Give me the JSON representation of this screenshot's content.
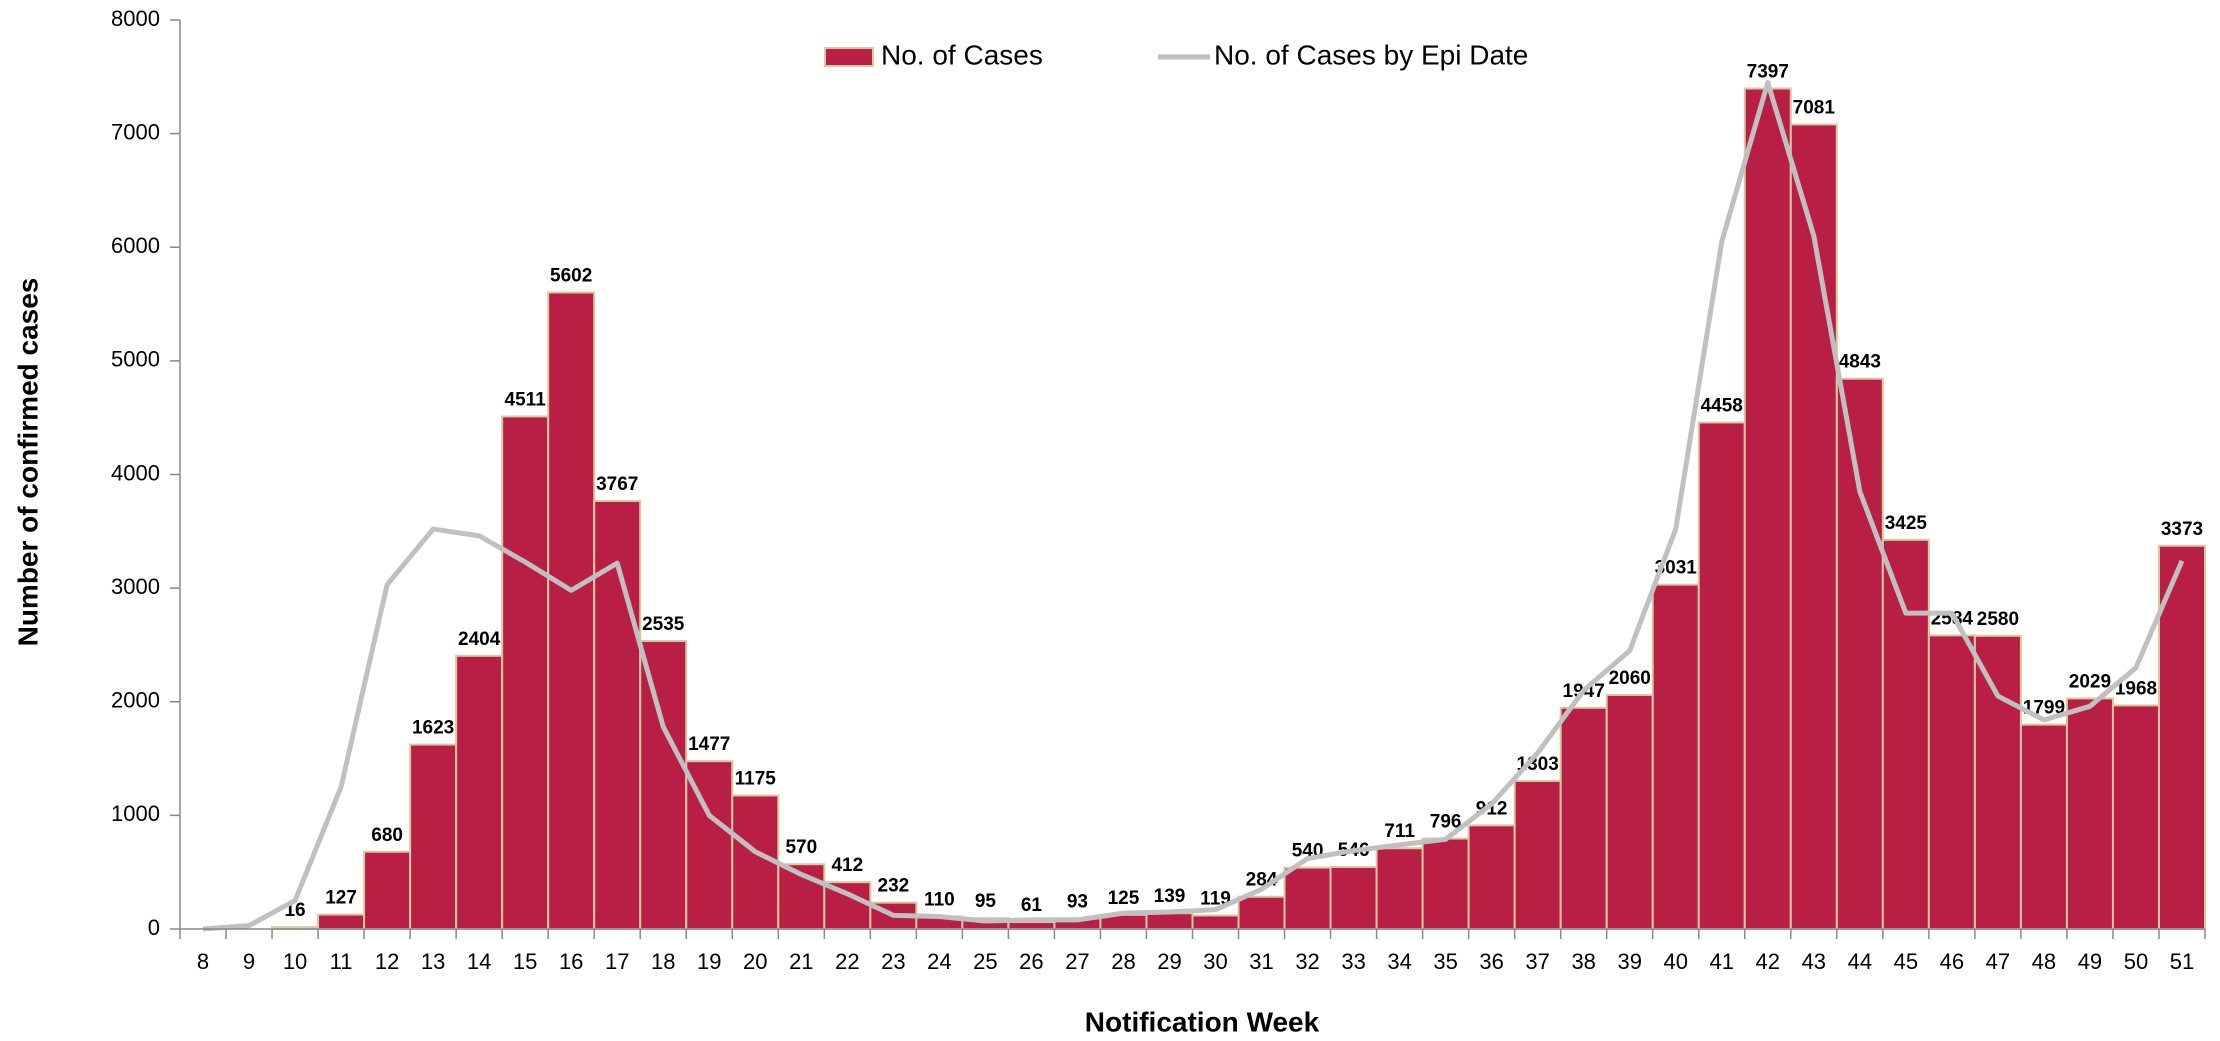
{
  "chart_data": {
    "type": "bar",
    "xlabel": "Notification Week",
    "ylabel": "Number of confirmed cases",
    "categories": [
      "8",
      "9",
      "10",
      "11",
      "12",
      "13",
      "14",
      "15",
      "16",
      "17",
      "18",
      "19",
      "20",
      "21",
      "22",
      "23",
      "24",
      "25",
      "26",
      "27",
      "28",
      "29",
      "30",
      "31",
      "32",
      "33",
      "34",
      "35",
      "36",
      "37",
      "38",
      "39",
      "40",
      "41",
      "42",
      "43",
      "44",
      "45",
      "46",
      "47",
      "48",
      "49",
      "50",
      "51"
    ],
    "series": [
      {
        "name": "No. of Cases",
        "type": "bar",
        "color": "#b91f45",
        "values": [
          null,
          null,
          16,
          127,
          680,
          1623,
          2404,
          4511,
          5602,
          3767,
          2535,
          1477,
          1175,
          570,
          412,
          232,
          110,
          95,
          61,
          93,
          125,
          139,
          119,
          284,
          540,
          546,
          711,
          796,
          912,
          1303,
          1947,
          2060,
          3031,
          4458,
          7397,
          7081,
          4843,
          3425,
          2584,
          2580,
          1799,
          2029,
          1968,
          3373
        ]
      },
      {
        "name": "No. of Cases by Epi Date",
        "type": "line",
        "color": "#c0c0c0",
        "values": [
          0,
          30,
          250,
          1250,
          3030,
          3520,
          3460,
          3230,
          2980,
          3220,
          1780,
          1000,
          680,
          480,
          310,
          120,
          110,
          70,
          80,
          80,
          140,
          150,
          170,
          350,
          620,
          690,
          740,
          790,
          1100,
          1550,
          2100,
          2450,
          3520,
          6050,
          7450,
          6100,
          3850,
          2780,
          2780,
          2050,
          1840,
          1960,
          2300,
          3240
        ]
      }
    ],
    "ylim": [
      0,
      8000
    ],
    "yticks": [
      0,
      1000,
      2000,
      3000,
      4000,
      5000,
      6000,
      7000,
      8000
    ],
    "legend": "top"
  }
}
